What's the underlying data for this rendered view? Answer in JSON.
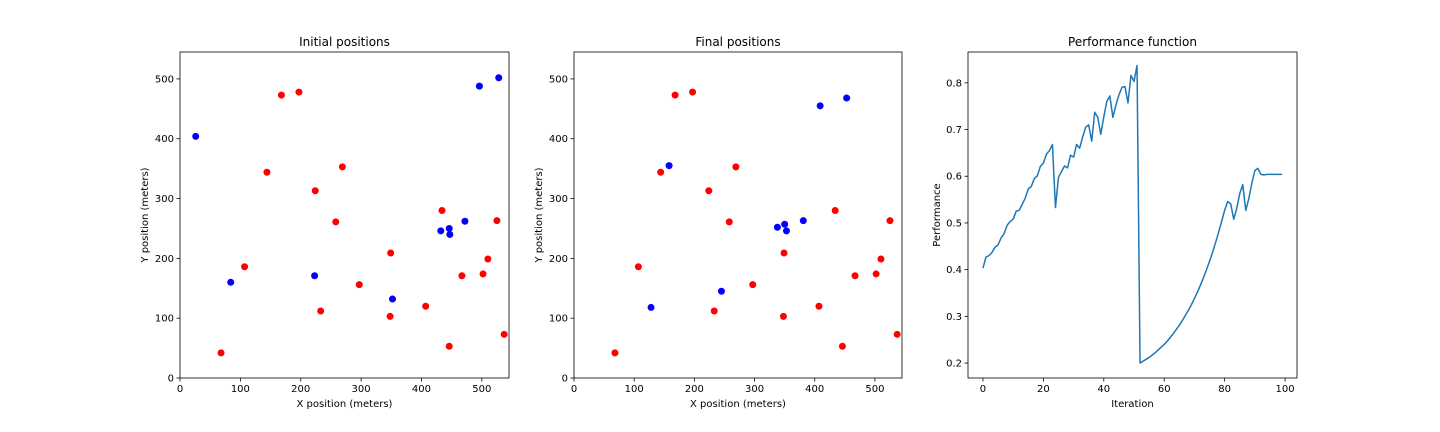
{
  "chart_data": [
    {
      "type": "scatter",
      "title": "Initial positions",
      "xlabel": "X position (meters)",
      "ylabel": "Y position (meters)",
      "xlim": [
        0,
        545
      ],
      "ylim": [
        0,
        545
      ],
      "xticks": [
        0,
        100,
        200,
        300,
        400,
        500
      ],
      "yticks": [
        0,
        100,
        200,
        300,
        400,
        500
      ],
      "grid": false,
      "colors": {
        "red": "#ff0000",
        "blue": "#0000ff"
      },
      "series": [
        {
          "color": "red",
          "points": [
            [
              168,
              473
            ],
            [
              197,
              478
            ],
            [
              144,
              344
            ],
            [
              224,
              313
            ],
            [
              269,
              353
            ],
            [
              258,
              261
            ],
            [
              107,
              186
            ],
            [
              297,
              156
            ],
            [
              233,
              112
            ],
            [
              68,
              42
            ],
            [
              349,
              209
            ],
            [
              348,
              103
            ],
            [
              407,
              120
            ],
            [
              434,
              280
            ],
            [
              446,
              53
            ],
            [
              467,
              171
            ],
            [
              502,
              174
            ],
            [
              510,
              199
            ],
            [
              525,
              263
            ],
            [
              537,
              73
            ]
          ]
        },
        {
          "color": "blue",
          "points": [
            [
              26,
              404
            ],
            [
              84,
              160
            ],
            [
              223,
              171
            ],
            [
              352,
              132
            ],
            [
              432,
              246
            ],
            [
              446,
              250
            ],
            [
              447,
              240
            ],
            [
              472,
              262
            ],
            [
              496,
              488
            ],
            [
              528,
              502
            ]
          ]
        }
      ]
    },
    {
      "type": "scatter",
      "title": "Final positions",
      "xlabel": "X position (meters)",
      "ylabel": "Y position (meters)",
      "xlim": [
        0,
        545
      ],
      "ylim": [
        0,
        545
      ],
      "xticks": [
        0,
        100,
        200,
        300,
        400,
        500
      ],
      "yticks": [
        0,
        100,
        200,
        300,
        400,
        500
      ],
      "grid": false,
      "colors": {
        "red": "#ff0000",
        "blue": "#0000ff"
      },
      "series": [
        {
          "color": "red",
          "points": [
            [
              168,
              473
            ],
            [
              197,
              478
            ],
            [
              144,
              344
            ],
            [
              224,
              313
            ],
            [
              269,
              353
            ],
            [
              258,
              261
            ],
            [
              107,
              186
            ],
            [
              297,
              156
            ],
            [
              233,
              112
            ],
            [
              68,
              42
            ],
            [
              349,
              209
            ],
            [
              348,
              103
            ],
            [
              407,
              120
            ],
            [
              434,
              280
            ],
            [
              446,
              53
            ],
            [
              467,
              171
            ],
            [
              502,
              174
            ],
            [
              510,
              199
            ],
            [
              525,
              263
            ],
            [
              537,
              73
            ]
          ]
        },
        {
          "color": "blue",
          "points": [
            [
              158,
              355
            ],
            [
              128,
              118
            ],
            [
              245,
              145
            ],
            [
              338,
              252
            ],
            [
              350,
              257
            ],
            [
              353,
              246
            ],
            [
              381,
              263
            ],
            [
              409,
              455
            ],
            [
              453,
              468
            ]
          ]
        }
      ]
    },
    {
      "type": "line",
      "title": "Performance function",
      "xlabel": "Iteration",
      "ylabel": "Performance",
      "xlim": [
        -4.95,
        103.95
      ],
      "ylim": [
        0.168,
        0.866
      ],
      "xticks": [
        0,
        20,
        40,
        60,
        80,
        100
      ],
      "yticks": [
        0.2,
        0.3,
        0.4,
        0.5,
        0.6,
        0.7,
        0.8
      ],
      "grid": false,
      "colors": {
        "line": "#1f77b4"
      },
      "x": [
        0,
        1,
        2,
        3,
        4,
        5,
        6,
        7,
        8,
        9,
        10,
        11,
        12,
        13,
        14,
        15,
        16,
        17,
        18,
        19,
        20,
        21,
        22,
        23,
        24,
        25,
        26,
        27,
        28,
        29,
        30,
        31,
        32,
        33,
        34,
        35,
        36,
        37,
        38,
        39,
        40,
        41,
        42,
        43,
        44,
        45,
        46,
        47,
        48,
        49,
        50,
        51,
        52,
        53,
        54,
        55,
        56,
        57,
        58,
        59,
        60,
        61,
        62,
        63,
        64,
        65,
        66,
        67,
        68,
        69,
        70,
        71,
        72,
        73,
        74,
        75,
        76,
        77,
        78,
        79,
        80,
        81,
        82,
        83,
        84,
        85,
        86,
        87,
        88,
        89,
        90,
        91,
        92,
        93,
        94,
        95,
        96,
        97,
        98,
        99
      ],
      "y": [
        0.403,
        0.427,
        0.43,
        0.437,
        0.448,
        0.453,
        0.468,
        0.477,
        0.495,
        0.503,
        0.508,
        0.525,
        0.527,
        0.54,
        0.553,
        0.573,
        0.578,
        0.595,
        0.601,
        0.621,
        0.628,
        0.647,
        0.655,
        0.668,
        0.533,
        0.598,
        0.61,
        0.622,
        0.618,
        0.645,
        0.641,
        0.668,
        0.66,
        0.684,
        0.705,
        0.71,
        0.675,
        0.737,
        0.726,
        0.69,
        0.727,
        0.76,
        0.772,
        0.726,
        0.752,
        0.774,
        0.79,
        0.792,
        0.757,
        0.816,
        0.803,
        0.837,
        0.2,
        0.204,
        0.208,
        0.212,
        0.217,
        0.222,
        0.228,
        0.234,
        0.24,
        0.247,
        0.255,
        0.263,
        0.272,
        0.281,
        0.291,
        0.302,
        0.313,
        0.325,
        0.338,
        0.352,
        0.367,
        0.383,
        0.4,
        0.418,
        0.437,
        0.458,
        0.48,
        0.503,
        0.527,
        0.546,
        0.541,
        0.508,
        0.531,
        0.563,
        0.582,
        0.527,
        0.552,
        0.585,
        0.612,
        0.617,
        0.604,
        0.603,
        0.604,
        0.604,
        0.604,
        0.604,
        0.604,
        0.604
      ]
    }
  ]
}
